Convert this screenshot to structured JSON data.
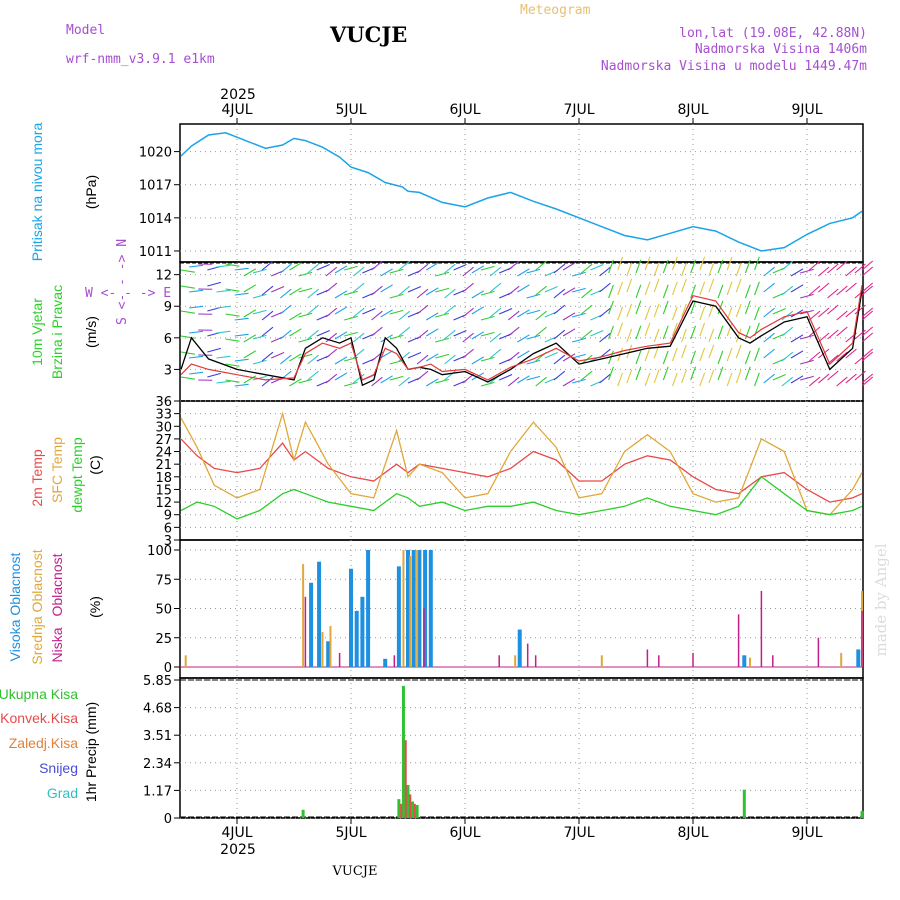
{
  "header": {
    "model_label": "Model",
    "model_name": "wrf-nmm_v3.9.1  e1km",
    "station": "VUCJE",
    "meteogram": "Meteogram",
    "coords": "lon,lat (19.08E, 42.88N)",
    "elevation": "Nadmorska Visina 1406m",
    "model_elevation": "Nadmorska Visina u modelu 1449.47m"
  },
  "footer": {
    "station": "VUCJE",
    "watermark": "made by Angel"
  },
  "colors": {
    "pressure": "#1ba3e8",
    "wind_line": "#000000",
    "wind_gust": "#e03a3a",
    "t2m": "#e84a4a",
    "sfc": "#e0a83a",
    "dew": "#2ccf2c",
    "high": "#1e90e0",
    "mid": "#e0a83a",
    "low": "#c0208a",
    "precip_total": "#2fc12f",
    "precip_conv": "#e84a4a",
    "precip_frozen": "#e0803a"
  },
  "chart_data": [
    {
      "type": "line",
      "panel": "pressure",
      "ylabel_1": "Pritisak na nivou mora",
      "ylabel_2": "(hPa)",
      "yticks": [
        "1020",
        "1017",
        "1014",
        "1011"
      ],
      "ylim": [
        1010.0,
        1022.5
      ],
      "x_top_year": "2025",
      "x_top_ticks": [
        "4JUL",
        "5JUL",
        "6JUL",
        "7JUL",
        "8JUL",
        "9JUL"
      ],
      "x_bottom_ticks": [
        "4JUL",
        "5JUL",
        "6JUL",
        "7JUL",
        "8JUL",
        "9JUL"
      ],
      "x_bottom_year": "2025",
      "x_days": [
        -0.5,
        -0.4,
        -0.25,
        -0.1,
        0.0,
        0.1,
        0.25,
        0.4,
        0.5,
        0.6,
        0.75,
        0.9,
        1.0,
        1.15,
        1.3,
        1.45,
        1.5,
        1.6,
        1.8,
        2.0,
        2.2,
        2.4,
        2.6,
        2.8,
        3.0,
        3.2,
        3.4,
        3.6,
        3.8,
        4.0,
        4.2,
        4.4,
        4.6,
        4.8,
        5.0,
        5.2,
        5.4,
        5.6
      ],
      "values": [
        1019.6,
        1020.5,
        1021.5,
        1021.7,
        1021.3,
        1020.9,
        1020.3,
        1020.6,
        1021.2,
        1021.0,
        1020.4,
        1019.5,
        1018.6,
        1018.1,
        1017.2,
        1016.8,
        1016.4,
        1016.3,
        1015.4,
        1015.0,
        1015.8,
        1016.3,
        1015.5,
        1014.8,
        1014.0,
        1013.2,
        1012.4,
        1012.0,
        1012.6,
        1013.2,
        1012.8,
        1011.8,
        1011.0,
        1011.3,
        1012.5,
        1013.5,
        1014.0,
        1014.6
      ]
    },
    {
      "type": "line",
      "panel": "wind",
      "ylabel_1": "10m Vjetar",
      "ylabel_2": "Brzina i Pravac",
      "ylabel_3": "(m/s)",
      "compass_1": "W <- - -> E",
      "compass_2": "S <- - -> N",
      "yticks": [
        "12",
        "9",
        "6",
        "3"
      ],
      "ylim": [
        0,
        13.2
      ],
      "series": [
        {
          "x_days": [
            -0.5,
            -0.4,
            -0.25,
            0.0,
            0.25,
            0.5,
            0.6,
            0.75,
            0.9,
            1.0,
            1.1,
            1.2,
            1.3,
            1.4,
            1.5,
            1.6,
            1.7,
            1.8,
            2.0,
            2.2,
            2.4,
            2.6,
            2.8,
            3.0,
            3.2,
            3.4,
            3.6,
            3.8,
            4.0,
            4.2,
            4.4,
            4.5,
            4.6,
            4.8,
            5.0,
            5.2,
            5.4,
            5.6
          ],
          "values": [
            3.0,
            6.0,
            4.0,
            3.0,
            2.5,
            2.0,
            5.0,
            6.0,
            5.5,
            6.0,
            1.5,
            2.0,
            6.0,
            5.0,
            3.0,
            3.2,
            3.0,
            2.5,
            2.8,
            1.8,
            3.0,
            4.5,
            5.5,
            3.5,
            4.0,
            4.5,
            5.0,
            5.2,
            9.5,
            9.0,
            6.0,
            5.5,
            6.2,
            7.5,
            8.0,
            3.0,
            5.0,
            10.5
          ]
        },
        {
          "x_days": [
            -0.5,
            -0.4,
            -0.25,
            0.0,
            0.25,
            0.5,
            0.6,
            0.75,
            0.9,
            1.0,
            1.1,
            1.2,
            1.3,
            1.4,
            1.5,
            1.6,
            1.7,
            1.8,
            2.0,
            2.2,
            2.4,
            2.6,
            2.8,
            3.0,
            3.2,
            3.4,
            3.6,
            3.8,
            4.0,
            4.2,
            4.4,
            4.5,
            4.6,
            4.8,
            5.0,
            5.2,
            5.4,
            5.6
          ],
          "values": [
            2.5,
            3.5,
            3.0,
            2.5,
            2.0,
            2.2,
            4.5,
            5.5,
            5.0,
            5.5,
            2.0,
            2.5,
            5.0,
            4.5,
            3.0,
            3.2,
            3.5,
            2.8,
            3.0,
            2.0,
            3.2,
            4.0,
            5.0,
            3.8,
            4.2,
            4.8,
            5.2,
            5.5,
            10.0,
            9.5,
            6.5,
            6.0,
            6.8,
            8.0,
            8.5,
            3.5,
            5.5,
            11.0
          ]
        }
      ]
    },
    {
      "type": "line",
      "panel": "temperature",
      "ylabel_1": "2m Temp",
      "ylabel_2": "SFC Temp",
      "ylabel_3": "dewpt Temp",
      "ylabel_4": "(C)",
      "yticks": [
        "36",
        "33",
        "30",
        "27",
        "24",
        "21",
        "18",
        "15",
        "12",
        "9",
        "6",
        "3"
      ],
      "ylim": [
        3,
        36
      ],
      "x_days": [
        -0.5,
        -0.35,
        -0.2,
        0.0,
        0.2,
        0.4,
        0.5,
        0.6,
        0.8,
        1.0,
        1.2,
        1.4,
        1.5,
        1.6,
        1.8,
        2.0,
        2.2,
        2.4,
        2.6,
        2.8,
        3.0,
        3.2,
        3.4,
        3.6,
        3.8,
        4.0,
        4.2,
        4.4,
        4.6,
        4.8,
        5.0,
        5.2,
        5.4,
        5.6
      ],
      "series": [
        {
          "values": [
            27.0,
            23.0,
            20.0,
            19.0,
            20.0,
            26.0,
            22.0,
            24.0,
            20.0,
            18.0,
            17.0,
            21.0,
            19.0,
            21.0,
            20.0,
            19.0,
            18.0,
            20.0,
            24.0,
            22.0,
            17.0,
            17.0,
            21.0,
            23.0,
            22.0,
            18.0,
            15.0,
            14.0,
            18.0,
            19.0,
            15.0,
            12.0,
            13.0,
            14.0
          ]
        },
        {
          "values": [
            32.0,
            25.0,
            16.0,
            13.0,
            15.0,
            33.0,
            22.0,
            31.0,
            21.0,
            14.0,
            13.0,
            29.0,
            18.0,
            21.0,
            19.0,
            13.0,
            14.0,
            24.0,
            31.0,
            25.0,
            13.0,
            14.0,
            24.0,
            28.0,
            24.0,
            14.0,
            12.0,
            13.0,
            27.0,
            24.0,
            10.0,
            9.0,
            15.0,
            19.0
          ]
        },
        {
          "values": [
            10.0,
            12.0,
            11.0,
            8.0,
            10.0,
            14.0,
            15.0,
            14.0,
            12.0,
            11.0,
            10.0,
            14.0,
            13.0,
            11.0,
            12.0,
            10.0,
            11.0,
            11.0,
            12.0,
            10.0,
            9.0,
            10.0,
            11.0,
            13.0,
            11.0,
            10.0,
            9.0,
            11.0,
            18.0,
            14.0,
            10.0,
            9.0,
            10.0,
            11.0
          ]
        }
      ]
    },
    {
      "type": "bar",
      "panel": "clouds",
      "ylabel_1": "Visoka Oblacnost",
      "ylabel_2": "Srednja Oblacnost",
      "ylabel_3": "Niska",
      "ylabel_4": "Oblacnost",
      "ylabel_5": "(%)",
      "yticks": [
        "100",
        "75",
        "50",
        "25",
        "0"
      ],
      "ylim": [
        0,
        100
      ],
      "series": [
        {
          "x_days": [
            0.65,
            0.72,
            0.8,
            1.0,
            1.05,
            1.1,
            1.15,
            1.3,
            1.42,
            1.5,
            1.55,
            1.6,
            1.65,
            1.7,
            2.48,
            4.45,
            5.45
          ],
          "values": [
            72,
            90,
            22,
            84,
            48,
            60,
            100,
            7,
            86,
            100,
            100,
            100,
            100,
            100,
            32,
            10,
            15
          ]
        },
        {
          "x_days": [
            -0.45,
            0.58,
            0.75,
            0.82,
            1.46,
            1.52,
            1.58,
            2.44,
            3.2,
            4.5,
            5.3,
            5.55
          ],
          "values": [
            10,
            88,
            30,
            35,
            100,
            95,
            100,
            10,
            10,
            8,
            12,
            65
          ]
        },
        {
          "x_days": [
            0.6,
            0.9,
            1.38,
            1.64,
            2.3,
            2.55,
            2.62,
            3.6,
            3.7,
            4.0,
            4.4,
            4.6,
            4.7,
            5.1,
            5.5
          ],
          "values": [
            60,
            12,
            10,
            50,
            10,
            20,
            10,
            15,
            10,
            12,
            45,
            65,
            10,
            25,
            48
          ]
        }
      ]
    },
    {
      "type": "bar",
      "panel": "precip",
      "legend": [
        "Ukupna Kisa",
        "Konvek.Kisa",
        "Zaledj.Kisa",
        "Snijeg",
        "Grad"
      ],
      "ylabel": "1hr Precip (mm)",
      "yticks": [
        "5.85",
        "4.68",
        "3.51",
        "2.34",
        "1.17",
        "0"
      ],
      "ylim": [
        0,
        5.85
      ],
      "series": [
        {
          "x_days": [
            0.58,
            1.42,
            1.46,
            1.5,
            1.54,
            1.58,
            4.45,
            5.6
          ],
          "values": [
            0.35,
            0.8,
            5.6,
            1.4,
            0.7,
            0.55,
            1.2,
            0.3
          ]
        },
        {
          "x_days": [
            1.44,
            1.48,
            1.52,
            1.56
          ],
          "values": [
            0.6,
            3.3,
            1.0,
            0.6
          ]
        }
      ]
    }
  ]
}
